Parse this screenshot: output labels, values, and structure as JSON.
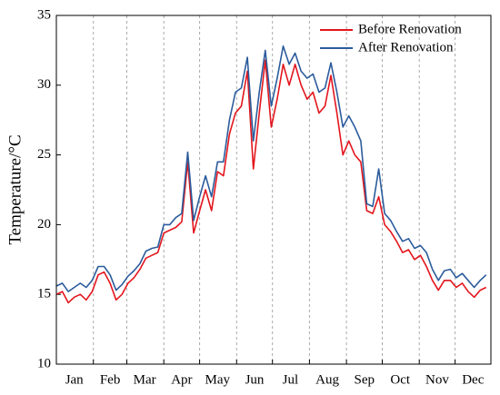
{
  "chart_data": {
    "type": "line",
    "ylabel": "Temperature/°C",
    "x": [
      1,
      6,
      11,
      16,
      21,
      26,
      31,
      36,
      41,
      46,
      51,
      56,
      61,
      66,
      71,
      76,
      81,
      86,
      91,
      96,
      101,
      106,
      111,
      116,
      121,
      126,
      131,
      136,
      141,
      146,
      151,
      156,
      161,
      166,
      171,
      176,
      181,
      186,
      191,
      196,
      201,
      206,
      211,
      216,
      221,
      226,
      231,
      236,
      241,
      246,
      251,
      256,
      261,
      266,
      271,
      276,
      281,
      286,
      291,
      296,
      301,
      306,
      311,
      316,
      321,
      326,
      331,
      336,
      341,
      346,
      351,
      356,
      361
    ],
    "series": [
      {
        "name": "Before Renovation",
        "color": "#e3161d",
        "values": [
          15.0,
          15.2,
          14.4,
          14.8,
          15.0,
          14.6,
          15.2,
          16.4,
          16.6,
          15.8,
          14.6,
          15.0,
          15.8,
          16.2,
          16.8,
          17.6,
          17.8,
          18.0,
          19.4,
          19.6,
          19.8,
          20.2,
          24.5,
          19.4,
          21.0,
          22.5,
          21.0,
          23.8,
          23.5,
          26.5,
          28.0,
          28.5,
          31.0,
          24.0,
          28.0,
          31.8,
          27.0,
          29.0,
          31.5,
          30.0,
          31.5,
          30.0,
          29.0,
          29.5,
          28.0,
          28.5,
          30.7,
          28.0,
          25.0,
          26.0,
          25.0,
          24.5,
          21.0,
          20.8,
          22.0,
          20.0,
          19.5,
          18.8,
          18.0,
          18.2,
          17.5,
          17.8,
          17.0,
          16.0,
          15.3,
          16.0,
          16.0,
          15.5,
          15.8,
          15.2,
          14.8,
          15.3,
          15.5
        ]
      },
      {
        "name": "After Renovation",
        "color": "#2b5c9c",
        "values": [
          15.6,
          15.8,
          15.2,
          15.5,
          15.8,
          15.5,
          16.0,
          17.0,
          17.0,
          16.4,
          15.3,
          15.7,
          16.3,
          16.7,
          17.2,
          18.1,
          18.3,
          18.4,
          20.0,
          20.0,
          20.5,
          20.8,
          25.2,
          20.3,
          22.0,
          23.5,
          22.0,
          24.5,
          24.5,
          27.5,
          29.5,
          29.8,
          32.0,
          26.0,
          29.5,
          32.5,
          28.5,
          30.5,
          32.8,
          31.5,
          32.3,
          31.0,
          30.5,
          30.8,
          29.5,
          29.8,
          31.6,
          29.5,
          27.0,
          27.8,
          27.0,
          26.0,
          21.5,
          21.3,
          24.0,
          20.8,
          20.3,
          19.5,
          18.8,
          19.0,
          18.3,
          18.5,
          18.0,
          16.8,
          16.0,
          16.7,
          16.8,
          16.2,
          16.5,
          16.0,
          15.5,
          16.0,
          16.4
        ]
      }
    ],
    "xlim": [
      1,
      365
    ],
    "xticks": [
      {
        "value": 16,
        "label": "Jan"
      },
      {
        "value": 46,
        "label": "Feb"
      },
      {
        "value": 75,
        "label": "Mar"
      },
      {
        "value": 106,
        "label": "Apr"
      },
      {
        "value": 136,
        "label": "May"
      },
      {
        "value": 167,
        "label": "Jun"
      },
      {
        "value": 197,
        "label": "Jul"
      },
      {
        "value": 228,
        "label": "Aug"
      },
      {
        "value": 259,
        "label": "Sep"
      },
      {
        "value": 289,
        "label": "Oct"
      },
      {
        "value": 320,
        "label": "Nov"
      },
      {
        "value": 350,
        "label": "Dec"
      }
    ],
    "xgrid": [
      32,
      60,
      91,
      121,
      152,
      182,
      213,
      244,
      274,
      305,
      335
    ],
    "ylim": [
      10,
      35
    ],
    "yticks": [
      10,
      15,
      20,
      25,
      30,
      35
    ],
    "legend": "upper right"
  }
}
